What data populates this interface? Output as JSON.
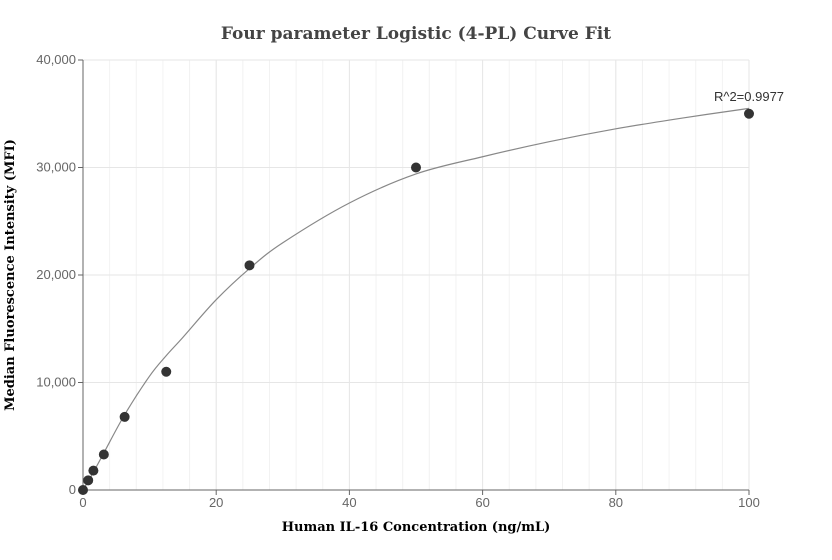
{
  "chart_data": {
    "type": "scatter",
    "title": "Four parameter Logistic (4-PL) Curve Fit",
    "xlabel": "Human IL-16 Concentration (ng/mL)",
    "ylabel": "Median Fluorescence Intensity (MFI)",
    "xlim": [
      0,
      100
    ],
    "ylim": [
      0,
      40000
    ],
    "x_ticks": [
      0,
      20,
      40,
      60,
      80,
      100
    ],
    "x_tick_labels": [
      "0",
      "20",
      "40",
      "60",
      "80",
      "100"
    ],
    "y_ticks": [
      0,
      10000,
      20000,
      30000,
      40000
    ],
    "y_tick_labels": [
      "0",
      "10,000",
      "20,000",
      "30,000",
      "40,000"
    ],
    "grid": true,
    "points": {
      "x": [
        0,
        0.78,
        1.56,
        3.13,
        6.25,
        12.5,
        25,
        50,
        100
      ],
      "y": [
        0,
        900,
        1800,
        3300,
        6800,
        11000,
        20900,
        30000,
        35000
      ]
    },
    "fit_curve": {
      "x": [
        0,
        0.78,
        1.56,
        3.13,
        6.25,
        10,
        12.5,
        15,
        20,
        25,
        30,
        40,
        50,
        60,
        70,
        80,
        90,
        100
      ],
      "y": [
        50,
        800,
        1650,
        3450,
        7000,
        10600,
        12500,
        14200,
        17700,
        20600,
        23000,
        26700,
        29400,
        31000,
        32400,
        33600,
        34600,
        35500
      ]
    },
    "annotation": "R^2=0.9977",
    "colors": {
      "points": "#333333",
      "curve": "#888888",
      "grid": "#e6e6e6",
      "axis": "#666666"
    }
  }
}
